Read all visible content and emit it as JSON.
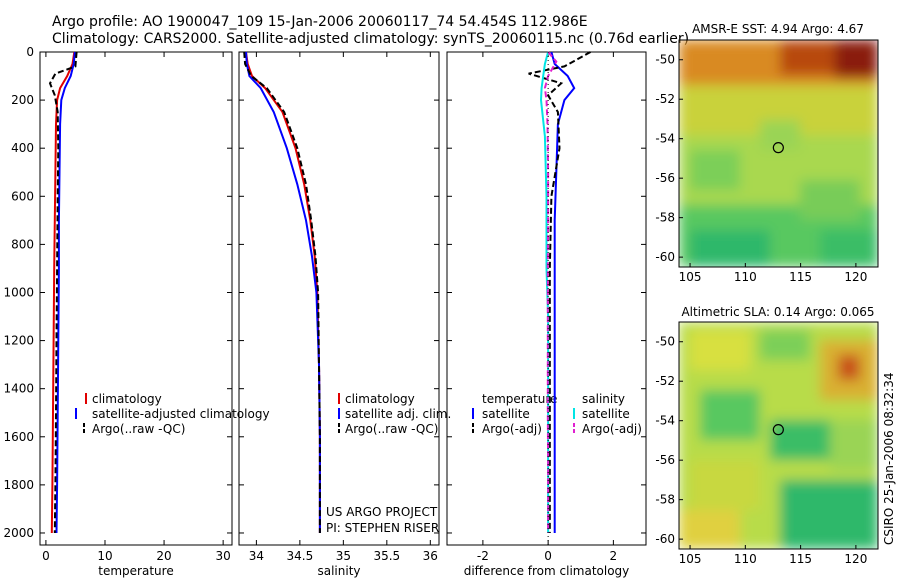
{
  "header": {
    "title_line1": "Argo profile: AO 1900047_109 15-Jan-2006 20060117_74 54.454S 112.986E",
    "title_line2": "Climatology: CARS2000. Satellite-adjusted climatology: synTS_20060115.nc (0.76d earlier)"
  },
  "colors": {
    "climatology": "#e00000",
    "satellite": "#0000ff",
    "argo": "#000000",
    "cyan": "#00e5e5",
    "magenta": "#e020d0"
  },
  "chart_data": [
    {
      "type": "line",
      "name": "temperature_profile",
      "xlabel": "temperature",
      "ylabel": "",
      "xlim": [
        -1,
        31.5
      ],
      "ylim": [
        2050,
        0
      ],
      "xticks": [
        0,
        10,
        20,
        30
      ],
      "yticks": [
        0,
        200,
        400,
        600,
        800,
        1000,
        1200,
        1400,
        1600,
        1800,
        2000
      ],
      "legend": [
        "climatology",
        "satellite-adjusted climatology",
        "Argo(..raw -QC)"
      ],
      "series": [
        {
          "name": "climatology",
          "color_key": "climatology",
          "dash": "solid",
          "x": [
            4.8,
            4.5,
            3.6,
            2.4,
            1.9,
            1.7,
            1.6,
            1.5,
            1.4,
            1.3,
            1.2,
            1.1,
            1.0
          ],
          "y": [
            0,
            50,
            100,
            150,
            200,
            300,
            500,
            700,
            900,
            1200,
            1500,
            1800,
            2000
          ]
        },
        {
          "name": "satellite-adjusted climatology",
          "color_key": "satellite",
          "dash": "solid",
          "x": [
            4.9,
            4.7,
            4.2,
            3.2,
            2.6,
            2.4,
            2.3,
            2.2,
            2.2,
            2.1,
            2.0,
            1.9,
            1.8
          ],
          "y": [
            0,
            50,
            100,
            150,
            200,
            300,
            500,
            700,
            900,
            1200,
            1500,
            1800,
            2000
          ]
        },
        {
          "name": "Argo(..raw -QC)",
          "color_key": "argo",
          "dash": "dashed",
          "x": [
            5.2,
            5.0,
            1.6,
            0.7,
            1.5,
            2.0,
            2.1,
            2.0,
            1.9,
            1.8,
            1.7,
            1.6,
            1.5
          ],
          "y": [
            0,
            60,
            90,
            130,
            180,
            250,
            400,
            600,
            900,
            1200,
            1500,
            1800,
            2000
          ]
        }
      ]
    },
    {
      "type": "line",
      "name": "salinity_profile",
      "xlabel": "salinity",
      "xlim": [
        33.8,
        36.1
      ],
      "ylim": [
        2050,
        0
      ],
      "xticks": [
        34,
        34.5,
        35,
        35.5,
        36
      ],
      "legend": [
        "climatology",
        "satellite adj. clim.",
        "Argo(..raw -QC)"
      ],
      "series": [
        {
          "name": "climatology",
          "color_key": "climatology",
          "dash": "solid",
          "x": [
            33.88,
            33.9,
            33.95,
            34.1,
            34.3,
            34.45,
            34.55,
            34.62,
            34.67,
            34.7,
            34.72,
            34.73,
            34.73
          ],
          "y": [
            0,
            50,
            100,
            150,
            250,
            400,
            550,
            700,
            850,
            1000,
            1300,
            1600,
            2000
          ]
        },
        {
          "name": "satellite adj. clim.",
          "color_key": "satellite",
          "dash": "solid",
          "x": [
            33.88,
            33.89,
            33.92,
            34.05,
            34.2,
            34.35,
            34.47,
            34.57,
            34.64,
            34.69,
            34.72,
            34.73,
            34.73
          ],
          "y": [
            0,
            50,
            100,
            150,
            250,
            400,
            550,
            700,
            850,
            1000,
            1300,
            1600,
            2000
          ]
        },
        {
          "name": "Argo(..raw -QC)",
          "color_key": "argo",
          "dash": "dashed",
          "x": [
            33.86,
            33.87,
            33.94,
            34.12,
            34.32,
            34.47,
            34.57,
            34.63,
            34.68,
            34.71,
            34.72,
            34.73,
            34.73
          ],
          "y": [
            0,
            50,
            100,
            150,
            250,
            400,
            550,
            700,
            850,
            1000,
            1300,
            1600,
            2000
          ]
        }
      ],
      "annotation": [
        "US ARGO PROJECT",
        "PI: STEPHEN RISER"
      ]
    },
    {
      "type": "line",
      "name": "difference_profile",
      "xlabel": "difference from climatology",
      "xlim": [
        -3.1,
        3.0
      ],
      "ylim": [
        2050,
        0
      ],
      "xticks": [
        -2,
        0,
        2
      ],
      "legend_titles": [
        "temperature",
        "salinity"
      ],
      "legend": [
        "satellite",
        "Argo(-adj)",
        "satellite",
        "Argo(-adj)"
      ],
      "series": [
        {
          "name": "temperature satellite",
          "color_key": "satellite",
          "dash": "solid",
          "x": [
            0.1,
            0.2,
            0.6,
            0.8,
            0.5,
            0.3,
            0.25,
            0.2,
            0.2,
            0.2,
            0.2,
            0.2,
            0.2,
            0.2
          ],
          "y": [
            0,
            50,
            100,
            150,
            200,
            300,
            500,
            700,
            900,
            1200,
            1500,
            1700,
            1900,
            2000
          ]
        },
        {
          "name": "temperature Argo(-adj)",
          "color_key": "argo",
          "dash": "dashed",
          "x": [
            1.3,
            0.5,
            -0.6,
            0.4,
            0.0,
            0.3,
            0.35,
            0.1,
            0.05,
            0.05,
            0.05,
            0.05,
            0.05,
            0.05
          ],
          "y": [
            0,
            60,
            90,
            130,
            180,
            250,
            400,
            600,
            900,
            1200,
            1500,
            1700,
            1900,
            2000
          ]
        },
        {
          "name": "salinity satellite",
          "color_key": "cyan",
          "dash": "solid",
          "x": [
            0.0,
            -0.1,
            -0.15,
            -0.2,
            -0.22,
            -0.1,
            -0.05,
            -0.05,
            0.0,
            0.0,
            0.0,
            0.0,
            0.0,
            0.0
          ],
          "y": [
            0,
            50,
            100,
            150,
            200,
            350,
            600,
            900,
            1100,
            1300,
            1500,
            1700,
            1900,
            2000
          ]
        },
        {
          "name": "salinity Argo(-adj)",
          "color_key": "magenta",
          "dash": "dashed",
          "x": [
            0.0,
            0.25,
            0.0,
            -0.1,
            -0.05,
            -0.02,
            0.0,
            0.0,
            -0.01,
            -0.01,
            -0.01,
            0.0,
            0.0,
            0.0
          ],
          "y": [
            0,
            40,
            100,
            150,
            200,
            300,
            500,
            700,
            900,
            1200,
            1500,
            1700,
            1900,
            2000
          ]
        }
      ]
    },
    {
      "type": "heatmap",
      "name": "sst_map",
      "title": "AMSR-E SST: 4.94  Argo: 4.67",
      "xlim": [
        104,
        122
      ],
      "ylim": [
        -60.5,
        -49
      ],
      "xticks": [
        105,
        110,
        115,
        120
      ],
      "yticks": [
        -50,
        -52,
        -54,
        -56,
        -58,
        -60
      ],
      "marker": {
        "lon": 112.986,
        "lat": -54.454
      }
    },
    {
      "type": "heatmap",
      "name": "sla_map",
      "title": "Altimetric SLA: 0.14  Argo: 0.065",
      "xlim": [
        104,
        122
      ],
      "ylim": [
        -60.5,
        -49
      ],
      "xticks": [
        105,
        110,
        115,
        120
      ],
      "yticks": [
        -50,
        -52,
        -54,
        -56,
        -58,
        -60
      ],
      "marker": {
        "lon": 112.986,
        "lat": -54.454
      }
    }
  ],
  "footer": {
    "credit": "CSIRO 25-Jan-2006 08:32:34"
  }
}
